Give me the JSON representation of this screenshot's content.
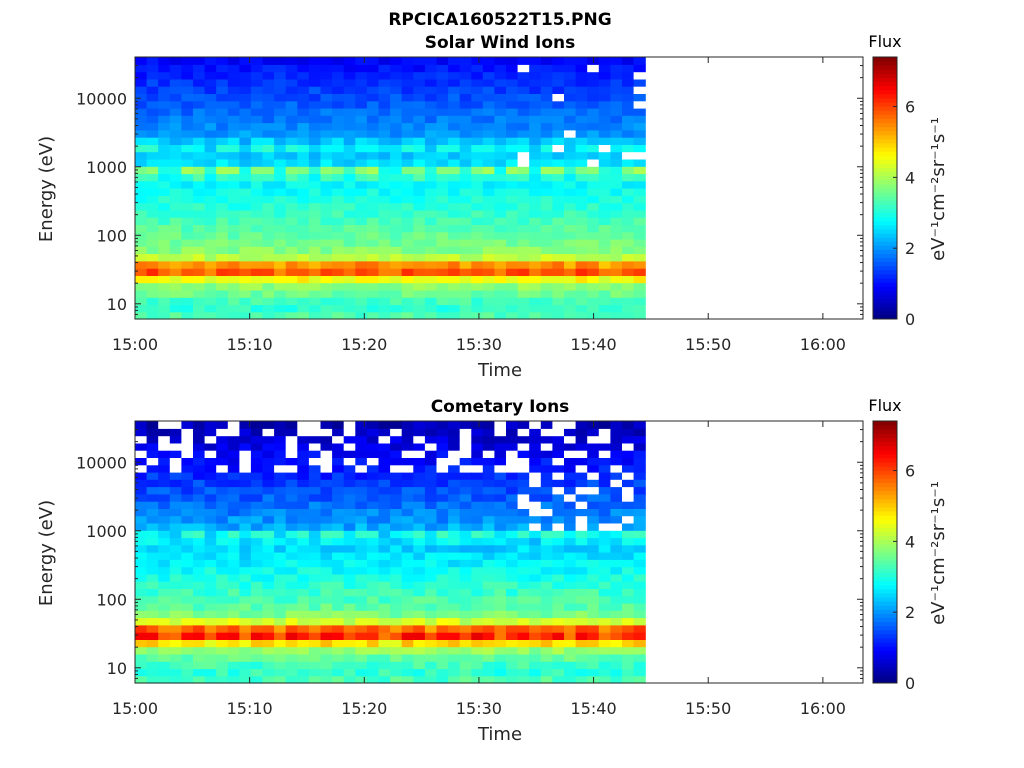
{
  "figure": {
    "title": "RPCICA160522T15.PNG"
  },
  "chart_data": [
    {
      "type": "heatmap",
      "title": "Solar Wind Ions",
      "xlabel": "Time",
      "ylabel": "Energy (eV)",
      "x_ticks": [
        "15:00",
        "15:10",
        "15:20",
        "15:30",
        "15:40",
        "15:50",
        "16:00"
      ],
      "x_tick_minutes": [
        0,
        10,
        20,
        30,
        40,
        50,
        60
      ],
      "xlim_minutes": [
        0,
        63.5
      ],
      "data_end_minute": 44.5,
      "y_scale": "log",
      "ylim": [
        6,
        40000
      ],
      "y_ticks": [
        10,
        100,
        1000,
        10000
      ],
      "y_tick_labels": [
        "10",
        "100",
        "1000",
        "10000"
      ],
      "colorbar": {
        "title": "Flux",
        "label": "eV⁻¹cm⁻²sr⁻¹s⁻¹",
        "range": [
          0,
          7.4
        ],
        "ticks": [
          0,
          2,
          4,
          6
        ],
        "tick_labels": [
          "0",
          "2",
          "4",
          "6"
        ]
      },
      "features": [
        {
          "description": "persistent high-flux band",
          "energy_range_eV": [
            22,
            45
          ],
          "peak_value": 6.2
        },
        {
          "description": "periodic peaks",
          "energy_eV": 850,
          "period_minutes": 3.2,
          "peak_value": 4.4
        },
        {
          "description": "secondary periodic peaks",
          "energy_eV": 2000,
          "peak_value": 3.0
        },
        {
          "description": "background",
          "energy_eV": 10000,
          "value": 1.1
        }
      ]
    },
    {
      "type": "heatmap",
      "title": "Cometary Ions",
      "xlabel": "Time",
      "ylabel": "Energy (eV)",
      "x_ticks": [
        "15:00",
        "15:10",
        "15:20",
        "15:30",
        "15:40",
        "15:50",
        "16:00"
      ],
      "x_tick_minutes": [
        0,
        10,
        20,
        30,
        40,
        50,
        60
      ],
      "xlim_minutes": [
        0,
        63.5
      ],
      "data_end_minute": 44.5,
      "y_scale": "log",
      "ylim": [
        6,
        40000
      ],
      "y_ticks": [
        10,
        100,
        1000,
        10000
      ],
      "y_tick_labels": [
        "10",
        "100",
        "1000",
        "10000"
      ],
      "colorbar": {
        "title": "Flux",
        "label": "eV⁻¹cm⁻²sr⁻¹s⁻¹",
        "range": [
          0,
          7.4
        ],
        "ticks": [
          0,
          2,
          4,
          6
        ],
        "tick_labels": [
          "0",
          "2",
          "4",
          "6"
        ]
      },
      "features": [
        {
          "description": "persistent high-flux band",
          "energy_range_eV": [
            20,
            45
          ],
          "peak_value": 6.6
        },
        {
          "description": "periodic peaks",
          "energy_eV": 850,
          "period_minutes": 3.2,
          "peak_value": 3.2
        },
        {
          "description": "background with gaps",
          "energy_eV": 20000,
          "value": 0.5
        }
      ]
    }
  ]
}
